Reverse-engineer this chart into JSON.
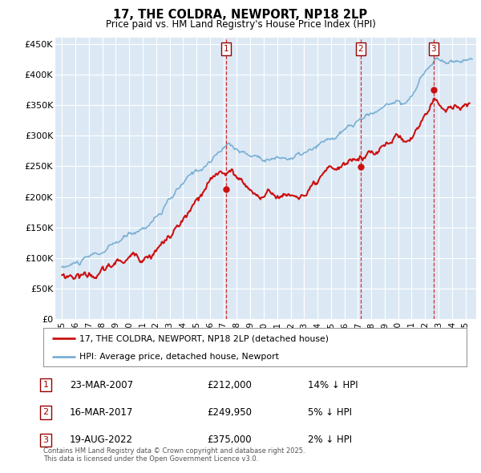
{
  "title": "17, THE COLDRA, NEWPORT, NP18 2LP",
  "subtitle": "Price paid vs. HM Land Registry's House Price Index (HPI)",
  "legend_label_red": "17, THE COLDRA, NEWPORT, NP18 2LP (detached house)",
  "legend_label_blue": "HPI: Average price, detached house, Newport",
  "footnote": "Contains HM Land Registry data © Crown copyright and database right 2025.\nThis data is licensed under the Open Government Licence v3.0.",
  "sales": [
    {
      "num": 1,
      "date": "23-MAR-2007",
      "price": 212000,
      "pct": "14%",
      "dir": "↓"
    },
    {
      "num": 2,
      "date": "16-MAR-2017",
      "price": 249950,
      "pct": "5%",
      "dir": "↓"
    },
    {
      "num": 3,
      "date": "19-AUG-2022",
      "price": 375000,
      "pct": "2%",
      "dir": "↓"
    }
  ],
  "sale_dates_decimal": [
    2007.22,
    2017.21,
    2022.63
  ],
  "sale_prices": [
    212000,
    249950,
    375000
  ],
  "ylim": [
    0,
    460000
  ],
  "yticks": [
    0,
    50000,
    100000,
    150000,
    200000,
    250000,
    300000,
    350000,
    400000,
    450000
  ],
  "ytick_labels": [
    "£0",
    "£50K",
    "£100K",
    "£150K",
    "£200K",
    "£250K",
    "£300K",
    "£350K",
    "£400K",
    "£450K"
  ],
  "xlim_start": 1994.5,
  "xlim_end": 2025.8,
  "xticks": [
    1995,
    1996,
    1997,
    1998,
    1999,
    2000,
    2001,
    2002,
    2003,
    2004,
    2005,
    2006,
    2007,
    2008,
    2009,
    2010,
    2011,
    2012,
    2013,
    2014,
    2015,
    2016,
    2017,
    2018,
    2019,
    2020,
    2021,
    2022,
    2023,
    2024,
    2025
  ],
  "bg_color": "#dce9f5",
  "red_color": "#cc1111",
  "blue_color": "#7aafd4",
  "grid_color": "#ffffff"
}
